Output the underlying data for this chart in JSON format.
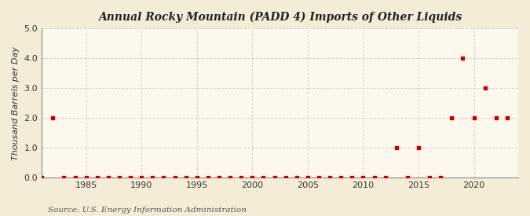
{
  "title": "Annual Rocky Mountain (PADD 4) Imports of Other Liquids",
  "ylabel": "Thousand Barrels per Day",
  "source": "Source: U.S. Energy Information Administration",
  "background_color": "#f5ecd7",
  "plot_background_color": "#fdf8ee",
  "grid_color": "#bbbbbb",
  "marker_color": "#cc0000",
  "xlim": [
    1981,
    2024
  ],
  "ylim": [
    0.0,
    5.0
  ],
  "yticks": [
    0.0,
    1.0,
    2.0,
    3.0,
    4.0,
    5.0
  ],
  "xticks": [
    1985,
    1990,
    1995,
    2000,
    2005,
    2010,
    2015,
    2020
  ],
  "years": [
    1981,
    1982,
    1983,
    1984,
    1985,
    1986,
    1987,
    1988,
    1989,
    1990,
    1991,
    1992,
    1993,
    1994,
    1995,
    1996,
    1997,
    1998,
    1999,
    2000,
    2001,
    2002,
    2003,
    2004,
    2005,
    2006,
    2007,
    2008,
    2009,
    2010,
    2011,
    2012,
    2013,
    2014,
    2015,
    2016,
    2017,
    2018,
    2019,
    2020,
    2021,
    2022,
    2023
  ],
  "values": [
    0,
    2,
    0,
    0,
    0,
    0,
    0,
    0,
    0,
    0,
    0,
    0,
    0,
    0,
    0,
    0,
    0,
    0,
    0,
    0,
    0,
    0,
    0,
    0,
    0,
    0,
    0,
    0,
    0,
    0,
    0,
    0,
    1,
    0,
    1,
    0,
    0,
    2,
    4,
    2,
    3,
    2,
    2
  ]
}
